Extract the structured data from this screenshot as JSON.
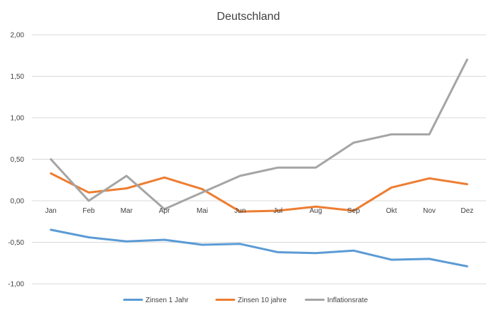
{
  "chart_data": {
    "type": "line",
    "title": "Deutschland",
    "categories": [
      "Jan",
      "Feb",
      "Mar",
      "Apr",
      "Mai",
      "Jun",
      "Jul",
      "Aug",
      "Sep",
      "Okt",
      "Nov",
      "Dez"
    ],
    "ylim": [
      -1.0,
      2.0
    ],
    "yticks": [
      2.0,
      1.5,
      1.0,
      0.5,
      0.0,
      -0.5,
      -1.0
    ],
    "ytick_labels": [
      "2,00",
      "1,50",
      "1,00",
      "0,50",
      "0,00",
      "-0,50",
      "-1,00"
    ],
    "grid": true,
    "legend": "bottom",
    "series": [
      {
        "name": "Zinsen 1 Jahr",
        "color": "#5b9bd5",
        "values": [
          -0.35,
          -0.44,
          -0.49,
          -0.47,
          -0.53,
          -0.52,
          -0.62,
          -0.63,
          -0.6,
          -0.71,
          -0.7,
          -0.79
        ]
      },
      {
        "name": "Zinsen 10 jahre",
        "color": "#ed7d31",
        "values": [
          0.33,
          0.1,
          0.15,
          0.28,
          0.14,
          -0.13,
          -0.12,
          -0.07,
          -0.12,
          0.16,
          0.27,
          0.2
        ]
      },
      {
        "name": "Inflationsrate",
        "color": "#a5a5a5",
        "values": [
          0.5,
          0.0,
          0.3,
          -0.1,
          0.1,
          0.3,
          0.4,
          0.4,
          0.7,
          0.8,
          0.8,
          1.7
        ]
      }
    ]
  }
}
